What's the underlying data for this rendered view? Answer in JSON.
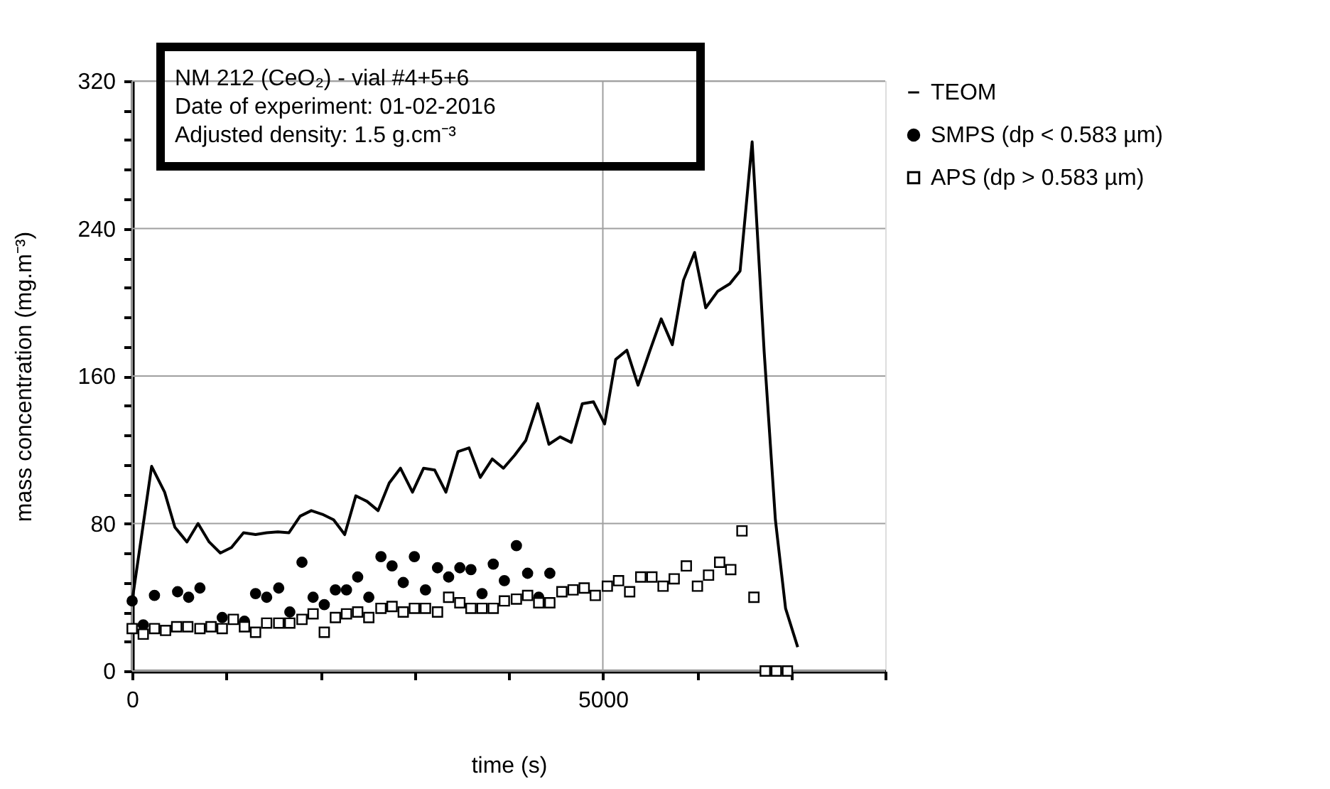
{
  "chart_data": {
    "type": "line",
    "xlabel": "time (s)",
    "ylabel": "mass concentration (mg.m⁻³)",
    "annotations": [
      "NM 212 (CeO₂) - vial #4+5+6",
      "Date of experiment: 01-02-2016",
      "Adjusted density: 1.5 g.cm⁻³"
    ],
    "xlim": [
      0,
      8000
    ],
    "xticks": [
      0,
      {
        "value": 1000,
        "label": null
      },
      {
        "value": 2000,
        "label": null
      },
      {
        "value": 3000,
        "label": null
      },
      {
        "value": 4000,
        "label": null
      },
      5000,
      {
        "value": 6000,
        "label": null
      },
      {
        "value": 7000,
        "label": null
      },
      {
        "value": 8000,
        "label": null
      }
    ],
    "ylim": [
      0,
      320
    ],
    "yticks": [
      0,
      {
        "value": 16,
        "label": null
      },
      {
        "value": 32,
        "label": null
      },
      {
        "value": 48,
        "label": null
      },
      {
        "value": 64,
        "label": null
      },
      80,
      {
        "value": 96,
        "label": null
      },
      {
        "value": 112,
        "label": null
      },
      {
        "value": 128,
        "label": null
      },
      {
        "value": 144,
        "label": null
      },
      160,
      {
        "value": 176,
        "label": null
      },
      {
        "value": 192,
        "label": null
      },
      {
        "value": 208,
        "label": null
      },
      {
        "value": 224,
        "label": null
      },
      240,
      {
        "value": 256,
        "label": null
      },
      {
        "value": 272,
        "label": null
      },
      {
        "value": 288,
        "label": null
      },
      {
        "value": 304,
        "label": null
      },
      320
    ],
    "grid": true,
    "legend": "top right",
    "series": [
      {
        "name": "TEOM",
        "type": "line",
        "color": "#000000",
        "marker": "none",
        "line_style": "solid",
        "x": [
          0,
          207,
          345,
          454,
          582,
          700,
          818,
          937,
          1055,
          1183,
          1311,
          1429,
          1548,
          1666,
          1785,
          1903,
          2021,
          2140,
          2258,
          2376,
          2495,
          2613,
          2731,
          2850,
          2978,
          3096,
          3214,
          3333,
          3461,
          3579,
          3698,
          3826,
          3944,
          4063,
          4181,
          4309,
          4427,
          4546,
          4664,
          4782,
          4901,
          5019,
          5137,
          5255,
          5374,
          5502,
          5620,
          5738,
          5857,
          5975,
          6093,
          6221,
          6349,
          6458,
          6586,
          6714,
          6833,
          6941,
          7070
        ],
        "values": [
          38,
          111,
          97,
          78,
          70,
          80,
          70,
          64,
          67,
          75,
          74,
          75,
          75.5,
          75,
          84,
          87,
          85,
          82,
          74,
          95,
          92,
          87,
          102,
          110,
          97,
          110,
          109,
          97,
          119,
          121,
          105,
          115,
          110,
          117,
          125,
          145,
          123,
          127,
          124,
          145,
          146,
          134,
          169,
          174,
          155,
          174,
          191,
          177,
          212,
          227,
          197,
          206,
          210,
          217,
          287,
          173,
          82,
          34,
          13
        ]
      },
      {
        "name": "SMPS (dp < 0.583 µm)",
        "type": "scatter",
        "color": "#000000",
        "marker": "circle",
        "x": [
          0,
          118,
          237,
          483,
          600,
          720,
          957,
          1193,
          1311,
          1429,
          1557,
          1675,
          1804,
          1922,
          2041,
          2159,
          2277,
          2396,
          2514,
          2643,
          2761,
          2880,
          2998,
          3116,
          3244,
          3362,
          3481,
          3599,
          3717,
          3836,
          3954,
          4082,
          4201,
          4319,
          4437
        ],
        "values": [
          38,
          25,
          41,
          43,
          40,
          45,
          29,
          27,
          42,
          40,
          45,
          32,
          59,
          40,
          36,
          44,
          44,
          51,
          40,
          62,
          57,
          48,
          62,
          44,
          56,
          51,
          56,
          55,
          42,
          58,
          49,
          68,
          53,
          40,
          53
        ]
      },
      {
        "name": "APS (dp > 0.583 µm)",
        "type": "scatter",
        "color": "#000000",
        "marker": "square",
        "x": [
          0,
          118,
          237,
          355,
          473,
          591,
          720,
          838,
          957,
          1075,
          1193,
          1311,
          1429,
          1557,
          1675,
          1804,
          1922,
          2041,
          2159,
          2277,
          2396,
          2514,
          2643,
          2761,
          2880,
          2998,
          3116,
          3244,
          3362,
          3481,
          3599,
          3717,
          3836,
          3954,
          4082,
          4201,
          4319,
          4437,
          4565,
          4684,
          4802,
          4920,
          5048,
          5167,
          5285,
          5403,
          5521,
          5640,
          5758,
          5887,
          6005,
          6123,
          6241,
          6359,
          6478,
          6605,
          6725,
          6843,
          6961
        ],
        "values": [
          23,
          20,
          23,
          22,
          24,
          24,
          23,
          24,
          23,
          28,
          24,
          21,
          26,
          26,
          26,
          28,
          31,
          21,
          29,
          31,
          32,
          29,
          34,
          35,
          32,
          34,
          34,
          32,
          40,
          37,
          34,
          34,
          34,
          38,
          39,
          41,
          37,
          37,
          43,
          44,
          45,
          41,
          46,
          49,
          43,
          51,
          51,
          46,
          50,
          57,
          46,
          52,
          59,
          55,
          76,
          40,
          0,
          0,
          0
        ]
      }
    ]
  }
}
